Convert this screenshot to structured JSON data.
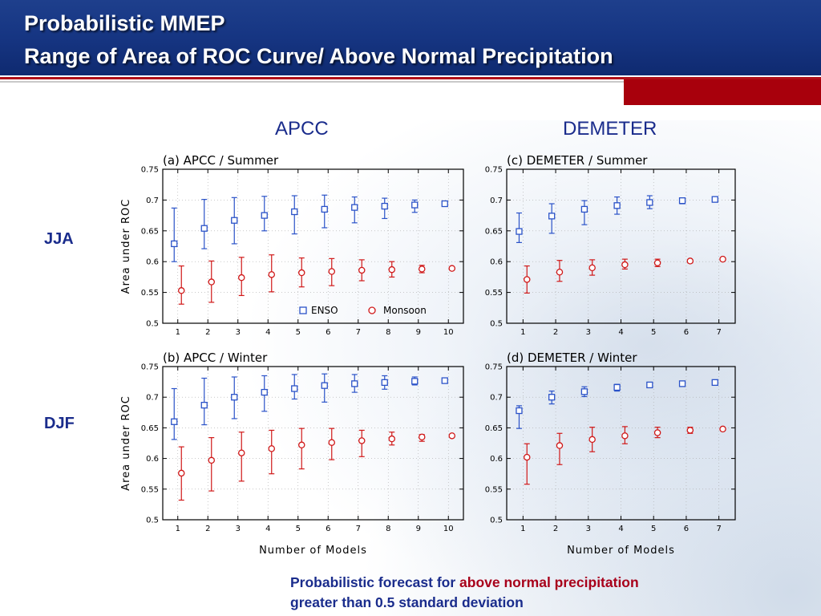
{
  "header": {
    "title_line1": "Probabilistic MMEP",
    "title_line2": "Range of Area of ROC Curve/ Above Normal Precipitation"
  },
  "columns": {
    "left": "APCC",
    "right": "DEMETER"
  },
  "rows": {
    "top": "JJA",
    "bottom": "DJF"
  },
  "colors": {
    "enso": "#2a52c8",
    "monsoon": "#d01818",
    "header": "#163582",
    "accent_red": "#a8000c"
  },
  "footnote": {
    "part1": "Probabilistic forecast for ",
    "highlight": "above normal precipitation",
    "part2": "greater than 0.5 standard deviation"
  },
  "chart_data": [
    {
      "id": "a",
      "type": "scatter",
      "title": "(a)  APCC  /  Summer",
      "ylabel": "Area  under  ROC",
      "xlabel": "",
      "x": [
        1,
        2,
        3,
        4,
        5,
        6,
        7,
        8,
        9,
        10
      ],
      "ylim": [
        0.5,
        0.75
      ],
      "yticks": [
        "0.5",
        "0.55",
        "0.6",
        "0.65",
        "0.7",
        "0.75"
      ],
      "legend": {
        "enso": "ENSO",
        "monsoon": "Monsoon"
      },
      "series": [
        {
          "name": "ENSO",
          "marker": "square",
          "mean": [
            0.629,
            0.654,
            0.667,
            0.675,
            0.681,
            0.685,
            0.688,
            0.69,
            0.692,
            0.694
          ],
          "low": [
            0.6,
            0.621,
            0.629,
            0.65,
            0.645,
            0.655,
            0.663,
            0.67,
            0.68,
            0.694
          ],
          "high": [
            0.687,
            0.701,
            0.704,
            0.706,
            0.707,
            0.708,
            0.705,
            0.703,
            0.7,
            0.694
          ]
        },
        {
          "name": "Monsoon",
          "marker": "circle",
          "mean": [
            0.553,
            0.567,
            0.574,
            0.579,
            0.582,
            0.584,
            0.586,
            0.587,
            0.588,
            0.589
          ],
          "low": [
            0.531,
            0.534,
            0.545,
            0.551,
            0.559,
            0.561,
            0.569,
            0.575,
            0.582,
            0.589
          ],
          "high": [
            0.593,
            0.601,
            0.607,
            0.611,
            0.606,
            0.605,
            0.603,
            0.6,
            0.594,
            0.589
          ]
        }
      ]
    },
    {
      "id": "b",
      "type": "scatter",
      "title": "(b)  APCC  /  Winter",
      "ylabel": "Area  under  ROC",
      "xlabel": "Number  of  Models",
      "x": [
        1,
        2,
        3,
        4,
        5,
        6,
        7,
        8,
        9,
        10
      ],
      "ylim": [
        0.5,
        0.75
      ],
      "yticks": [
        "0.5",
        "0.55",
        "0.6",
        "0.65",
        "0.7",
        "0.75"
      ],
      "series": [
        {
          "name": "ENSO",
          "marker": "square",
          "mean": [
            0.66,
            0.687,
            0.7,
            0.708,
            0.714,
            0.719,
            0.722,
            0.724,
            0.726,
            0.727
          ],
          "low": [
            0.631,
            0.655,
            0.665,
            0.677,
            0.697,
            0.692,
            0.708,
            0.713,
            0.72,
            0.727
          ],
          "high": [
            0.714,
            0.731,
            0.733,
            0.735,
            0.737,
            0.738,
            0.737,
            0.735,
            0.733,
            0.727
          ]
        },
        {
          "name": "Monsoon",
          "marker": "circle",
          "mean": [
            0.576,
            0.597,
            0.609,
            0.616,
            0.622,
            0.626,
            0.629,
            0.632,
            0.635,
            0.637
          ],
          "low": [
            0.532,
            0.547,
            0.563,
            0.575,
            0.583,
            0.598,
            0.603,
            0.622,
            0.628,
            0.637
          ],
          "high": [
            0.619,
            0.634,
            0.643,
            0.646,
            0.649,
            0.649,
            0.646,
            0.643,
            0.639,
            0.637
          ]
        }
      ]
    },
    {
      "id": "c",
      "type": "scatter",
      "title": "(c)  DEMETER  /  Summer",
      "ylabel": "",
      "xlabel": "",
      "x": [
        1,
        2,
        3,
        4,
        5,
        6,
        7
      ],
      "ylim": [
        0.5,
        0.75
      ],
      "yticks": [
        "0.5",
        "0.55",
        "0.6",
        "0.65",
        "0.7",
        "0.75"
      ],
      "series": [
        {
          "name": "ENSO",
          "marker": "square",
          "mean": [
            0.649,
            0.674,
            0.685,
            0.691,
            0.696,
            0.699,
            0.701
          ],
          "low": [
            0.631,
            0.646,
            0.66,
            0.677,
            0.686,
            0.694,
            0.701
          ],
          "high": [
            0.679,
            0.694,
            0.699,
            0.705,
            0.707,
            0.703,
            0.701
          ]
        },
        {
          "name": "Monsoon",
          "marker": "circle",
          "mean": [
            0.571,
            0.583,
            0.59,
            0.595,
            0.598,
            0.601,
            0.604
          ],
          "low": [
            0.549,
            0.568,
            0.578,
            0.588,
            0.592,
            0.598,
            0.604
          ],
          "high": [
            0.593,
            0.602,
            0.603,
            0.604,
            0.604,
            0.603,
            0.604
          ]
        }
      ]
    },
    {
      "id": "d",
      "type": "scatter",
      "title": "(d)  DEMETER  /  Winter",
      "ylabel": "",
      "xlabel": "Number  of  Models",
      "x": [
        1,
        2,
        3,
        4,
        5,
        6,
        7
      ],
      "ylim": [
        0.5,
        0.75
      ],
      "yticks": [
        "0.5",
        "0.55",
        "0.6",
        "0.65",
        "0.7",
        "0.75"
      ],
      "series": [
        {
          "name": "ENSO",
          "marker": "square",
          "mean": [
            0.678,
            0.7,
            0.709,
            0.716,
            0.72,
            0.722,
            0.724
          ],
          "low": [
            0.649,
            0.689,
            0.701,
            0.71,
            0.72,
            0.722,
            0.724
          ],
          "high": [
            0.686,
            0.71,
            0.717,
            0.721,
            0.72,
            0.722,
            0.724
          ]
        },
        {
          "name": "Monsoon",
          "marker": "circle",
          "mean": [
            0.602,
            0.621,
            0.631,
            0.637,
            0.642,
            0.646,
            0.648
          ],
          "low": [
            0.558,
            0.59,
            0.611,
            0.624,
            0.634,
            0.641,
            0.648
          ],
          "high": [
            0.624,
            0.641,
            0.651,
            0.652,
            0.651,
            0.651,
            0.648
          ]
        }
      ]
    }
  ]
}
